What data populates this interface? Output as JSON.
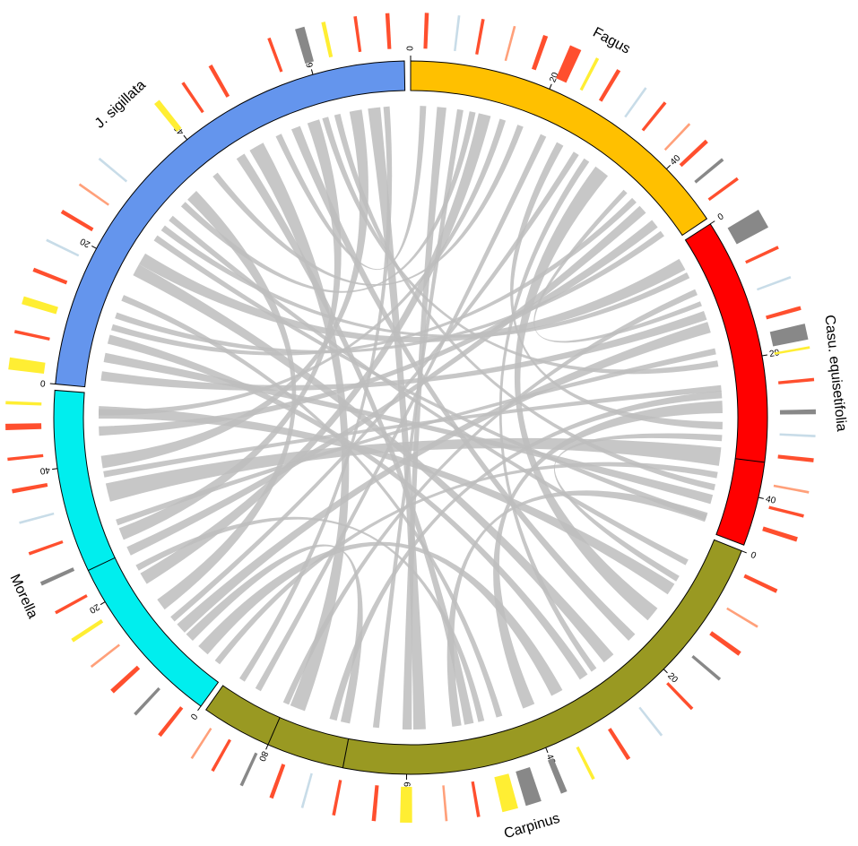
{
  "chart_data": {
    "type": "chord",
    "segments": [
      {
        "name": "Fagus",
        "color": "#ffc000",
        "length": 49,
        "ticks": [
          0,
          20,
          40
        ],
        "breaks": [],
        "marks": [
          [
            2,
            0,
            0.5
          ],
          [
            6,
            3,
            0.3
          ],
          [
            9,
            0,
            0.4
          ],
          [
            13,
            4,
            0.3
          ],
          [
            17,
            0,
            0.6
          ],
          [
            21,
            0,
            1.5
          ],
          [
            24,
            2,
            0.4
          ],
          [
            27,
            0,
            0.5
          ],
          [
            31,
            3,
            0.3
          ],
          [
            34,
            0,
            0.4
          ],
          [
            38,
            4,
            0.3
          ],
          [
            41,
            0,
            0.5
          ],
          [
            44,
            1,
            0.4
          ],
          [
            47,
            0,
            0.4
          ]
        ]
      },
      {
        "name": "Casu. equisetifolia",
        "color": "#ff0000",
        "length": 47,
        "ticks": [
          0,
          20,
          40
        ],
        "breaks": [
          35
        ],
        "marks": [
          [
            3,
            1,
            2.5
          ],
          [
            7,
            0,
            0.4
          ],
          [
            11,
            3,
            0.3
          ],
          [
            15,
            0,
            0.5
          ],
          [
            18,
            1,
            2
          ],
          [
            20,
            2,
            0.3
          ],
          [
            24,
            0,
            0.4
          ],
          [
            28,
            1,
            0.6
          ],
          [
            31,
            3,
            0.3
          ],
          [
            34,
            0,
            0.5
          ],
          [
            38,
            4,
            0.3
          ],
          [
            41,
            0,
            0.4
          ],
          [
            44,
            0,
            0.6
          ]
        ]
      },
      {
        "name": "Carpinus",
        "color": "#999922",
        "length": 90,
        "ticks": [
          0,
          20,
          40,
          60,
          80
        ],
        "breaks": [
          69,
          80
        ],
        "marks": [
          [
            3,
            0,
            0.5
          ],
          [
            8,
            4,
            0.3
          ],
          [
            12,
            0,
            0.6
          ],
          [
            16,
            1,
            0.4
          ],
          [
            21,
            0,
            0.4
          ],
          [
            26,
            3,
            0.3
          ],
          [
            31,
            0,
            0.5
          ],
          [
            36,
            2,
            0.4
          ],
          [
            40,
            1,
            0.8
          ],
          [
            44,
            1,
            2
          ],
          [
            47,
            2,
            2
          ],
          [
            51,
            0,
            0.4
          ],
          [
            55,
            4,
            0.3
          ],
          [
            60,
            2,
            1.5
          ],
          [
            64,
            0,
            0.5
          ],
          [
            69,
            0,
            0.4
          ],
          [
            73,
            3,
            0.3
          ],
          [
            77,
            0,
            0.5
          ],
          [
            81,
            1,
            0.4
          ],
          [
            85,
            0,
            0.4
          ],
          [
            88,
            4,
            0.3
          ]
        ]
      },
      {
        "name": "Morella",
        "color": "#00eeee",
        "length": 51,
        "ticks": [
          0,
          20,
          40
        ],
        "breaks": [
          25
        ],
        "marks": [
          [
            2,
            0,
            0.5
          ],
          [
            6,
            1,
            0.4
          ],
          [
            10,
            0,
            0.6
          ],
          [
            14,
            4,
            0.3
          ],
          [
            18,
            2,
            0.5
          ],
          [
            22,
            0,
            0.4
          ],
          [
            26,
            1,
            0.5
          ],
          [
            30,
            0,
            0.4
          ],
          [
            34,
            3,
            0.3
          ],
          [
            38,
            0,
            0.5
          ],
          [
            42,
            0,
            0.4
          ],
          [
            46,
            0,
            0.8
          ],
          [
            49,
            2,
            0.4
          ]
        ]
      },
      {
        "name": "J. sigillata",
        "color": "#6495ed",
        "length": 73,
        "ticks": [
          0,
          20,
          40,
          60
        ],
        "breaks": [],
        "marks": [
          [
            2,
            2,
            1.5
          ],
          [
            6,
            0,
            0.4
          ],
          [
            10,
            2,
            1
          ],
          [
            14,
            0,
            0.5
          ],
          [
            18,
            3,
            0.3
          ],
          [
            22,
            0,
            0.5
          ],
          [
            26,
            4,
            0.3
          ],
          [
            30,
            3,
            0.3
          ],
          [
            40,
            2,
            0.8
          ],
          [
            44,
            0,
            0.4
          ],
          [
            48,
            0,
            0.5
          ],
          [
            56,
            0,
            0.4
          ],
          [
            60,
            1,
            1.2
          ],
          [
            63,
            2,
            0.5
          ],
          [
            67,
            0,
            0.4
          ],
          [
            71,
            0,
            0.5
          ]
        ]
      }
    ],
    "track_colors": [
      "#ff4f2e",
      "#888888",
      "#ffee33",
      "#c8dce8",
      "#ffa07a"
    ],
    "link_color": "#bdbdbd",
    "links": [
      [
        0,
        5,
        2,
        60,
        1.5
      ],
      [
        0,
        12,
        3,
        20,
        2
      ],
      [
        0,
        18,
        4,
        40,
        1
      ],
      [
        0,
        25,
        1,
        30,
        1.2
      ],
      [
        0,
        33,
        2,
        15,
        2.5
      ],
      [
        0,
        40,
        4,
        10,
        1
      ],
      [
        0,
        45,
        3,
        45,
        1.5
      ],
      [
        1,
        3,
        4,
        22,
        2
      ],
      [
        1,
        8,
        2,
        80,
        1
      ],
      [
        1,
        14,
        3,
        10,
        1.8
      ],
      [
        1,
        20,
        4,
        60,
        1
      ],
      [
        1,
        27,
        2,
        40,
        2
      ],
      [
        1,
        35,
        3,
        35,
        3
      ],
      [
        1,
        42,
        4,
        5,
        1.5
      ],
      [
        2,
        5,
        4,
        30,
        1
      ],
      [
        2,
        10,
        3,
        48,
        2
      ],
      [
        2,
        20,
        4,
        55,
        1.5
      ],
      [
        2,
        28,
        0,
        30,
        1
      ],
      [
        2,
        35,
        3,
        5,
        2
      ],
      [
        2,
        45,
        4,
        15,
        1
      ],
      [
        2,
        52,
        1,
        45,
        1.5
      ],
      [
        2,
        58,
        4,
        68,
        2
      ],
      [
        2,
        65,
        0,
        8,
        1
      ],
      [
        2,
        72,
        1,
        25,
        1.2
      ],
      [
        2,
        78,
        4,
        48,
        2.5
      ],
      [
        2,
        85,
        0,
        22,
        1
      ],
      [
        3,
        2,
        1,
        38,
        1
      ],
      [
        3,
        15,
        4,
        35,
        2
      ],
      [
        3,
        25,
        0,
        42,
        1.5
      ],
      [
        3,
        30,
        1,
        18,
        1
      ],
      [
        3,
        40,
        4,
        65,
        2
      ],
      [
        3,
        48,
        0,
        15,
        1
      ],
      [
        4,
        2,
        1,
        12,
        1.5
      ],
      [
        4,
        12,
        0,
        47,
        1
      ],
      [
        4,
        20,
        2,
        25,
        2
      ],
      [
        4,
        28,
        1,
        5,
        1
      ],
      [
        4,
        45,
        2,
        50,
        1.5
      ],
      [
        4,
        52,
        0,
        2,
        1
      ],
      [
        4,
        58,
        3,
        28,
        2
      ],
      [
        4,
        70,
        2,
        88,
        1
      ],
      [
        0,
        28,
        3,
        12,
        1
      ],
      [
        1,
        32,
        2,
        8,
        1
      ],
      [
        2,
        30,
        4,
        8,
        1.5
      ],
      [
        3,
        38,
        1,
        24,
        1
      ],
      [
        4,
        33,
        0,
        10,
        1
      ],
      [
        2,
        48,
        3,
        22,
        1
      ],
      [
        0,
        38,
        1,
        10,
        0.8
      ],
      [
        4,
        62,
        1,
        40,
        1
      ],
      [
        3,
        8,
        2,
        70,
        1.5
      ],
      [
        1,
        45,
        4,
        26,
        1
      ]
    ]
  }
}
